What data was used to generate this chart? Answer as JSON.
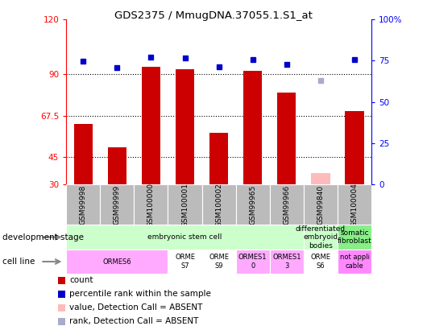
{
  "title": "GDS2375 / MmugDNA.37055.1.S1_at",
  "samples": [
    "GSM99998",
    "GSM99999",
    "GSM100000",
    "GSM100001",
    "GSM100002",
    "GSM99965",
    "GSM99966",
    "GSM99840",
    "GSM100004"
  ],
  "bar_values": [
    63,
    50,
    94,
    93,
    58,
    92,
    80,
    36,
    70
  ],
  "absent_bars": [
    false,
    false,
    false,
    false,
    false,
    false,
    false,
    true,
    false
  ],
  "rank_values": [
    74.5,
    71,
    77,
    76.5,
    71.5,
    75.5,
    73,
    63,
    75.5
  ],
  "absent_ranks": [
    false,
    false,
    false,
    false,
    false,
    false,
    false,
    true,
    false
  ],
  "ylim_left": [
    30,
    120
  ],
  "ylim_right": [
    0,
    100
  ],
  "yticks_left": [
    30,
    45,
    67.5,
    90,
    120
  ],
  "yticks_right": [
    0,
    25,
    50,
    75,
    100
  ],
  "ytick_labels_left": [
    "30",
    "45",
    "67.5",
    "90",
    "120"
  ],
  "ytick_labels_right": [
    "0",
    "25",
    "50",
    "75",
    "100%"
  ],
  "hlines": [
    45,
    67.5,
    90
  ],
  "dev_stage_groups": [
    {
      "label": "embryonic stem cell",
      "start": 0,
      "end": 7,
      "color": "#ccffcc"
    },
    {
      "label": "differentiated\nembryoid\nbodies",
      "start": 7,
      "end": 8,
      "color": "#ccffcc"
    },
    {
      "label": "somatic\nfibroblast",
      "start": 8,
      "end": 9,
      "color": "#88ee88"
    }
  ],
  "cell_line_groups": [
    {
      "label": "ORMES6",
      "start": 0,
      "end": 3,
      "color": "#ffaaff"
    },
    {
      "label": "ORME\nS7",
      "start": 3,
      "end": 4,
      "color": "#ffffff"
    },
    {
      "label": "ORME\nS9",
      "start": 4,
      "end": 5,
      "color": "#ffffff"
    },
    {
      "label": "ORMES1\n0",
      "start": 5,
      "end": 6,
      "color": "#ffaaff"
    },
    {
      "label": "ORMES1\n3",
      "start": 6,
      "end": 7,
      "color": "#ffaaff"
    },
    {
      "label": "ORME\nS6",
      "start": 7,
      "end": 8,
      "color": "#ffffff"
    },
    {
      "label": "not appli\ncable",
      "start": 8,
      "end": 9,
      "color": "#ff88ff"
    }
  ],
  "bar_color_normal": "#cc0000",
  "bar_color_absent": "#ffbbbb",
  "rank_color_normal": "#0000cc",
  "rank_color_absent": "#aaaacc",
  "plot_bg": "#ffffff",
  "xlabel_bg": "#bbbbbb"
}
